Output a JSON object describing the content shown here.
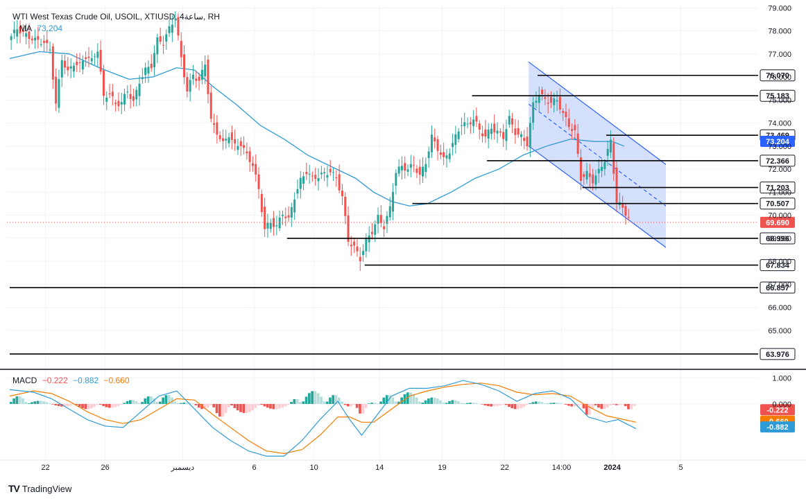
{
  "header": {
    "symbol_line": "WTI West Texas Crude Oil, USOIL, XTIUSD, 4ساعة, RH",
    "ma_label": "MA",
    "ma_value": "73.204"
  },
  "macd_legend": {
    "label": "MACD",
    "hist": "−0.222",
    "macd": "−0.882",
    "signal": "−0.660"
  },
  "brand": {
    "name": "TradingView",
    "logo": "TV"
  },
  "colors": {
    "up": "#26a69a",
    "down": "#ef5350",
    "ma": "#2e9bd6",
    "channel_fill": "#c7d6fb",
    "channel_line": "#2962ff",
    "signal": "#f57c00",
    "hist_up_strong": "#26a69a",
    "hist_up_weak": "#b2dfdb",
    "hist_down_strong": "#ef5350",
    "hist_down_weak": "#ffcdd2"
  },
  "chart_data": {
    "type": "candlestick",
    "price_axis": {
      "ticks": [
        "79.000",
        "78.000",
        "77.000",
        "76.000",
        "75.000",
        "74.000",
        "73.000",
        "72.000",
        "71.000",
        "70.000",
        "69.000",
        "68.000",
        "67.000",
        "66.000",
        "65.000"
      ],
      "ylim": [
        63.4,
        79.1
      ]
    },
    "macd_axis": {
      "ticks": [
        "1.000",
        "0.000"
      ],
      "ylim": [
        -2.1,
        1.3
      ]
    },
    "x_ticks": [
      {
        "label": "22",
        "bar": 12
      },
      {
        "label": "26",
        "bar": 32
      },
      {
        "label": "ديسمبر",
        "bar": 58
      },
      {
        "label": "6",
        "bar": 82
      },
      {
        "label": "10",
        "bar": 102
      },
      {
        "label": "14",
        "bar": 124
      },
      {
        "label": "19",
        "bar": 145
      },
      {
        "label": "22",
        "bar": 166
      },
      {
        "label": "14:00",
        "bar": 185
      },
      {
        "label": "2024",
        "bar": 202
      },
      {
        "label": "5",
        "bar": 225
      }
    ],
    "levels": [
      {
        "label": "76.070",
        "value": 76.07,
        "from_bar": 177
      },
      {
        "label": "75.183",
        "value": 75.183,
        "from_bar": 155
      },
      {
        "label": "73.469",
        "value": 73.469,
        "from_bar": 200
      },
      {
        "label": "72.366",
        "value": 72.366,
        "from_bar": 160
      },
      {
        "label": "71.203",
        "value": 71.203,
        "from_bar": 192
      },
      {
        "label": "70.507",
        "value": 70.507,
        "from_bar": 135
      },
      {
        "label": "68.996",
        "value": 68.996,
        "from_bar": 93
      },
      {
        "label": "67.834",
        "value": 67.834,
        "from_bar": 119
      },
      {
        "label": "66.857",
        "value": 66.857,
        "from_bar": 0
      },
      {
        "label": "63.976",
        "value": 63.976,
        "from_bar": 0
      }
    ],
    "price_labels": [
      {
        "label": "73.204",
        "value": 73.204,
        "kind": "ma"
      },
      {
        "label": "69.690",
        "value": 69.69,
        "kind": "last"
      }
    ],
    "last_price": 69.69,
    "macd_labels": [
      {
        "label": "-0.222",
        "value": -0.222,
        "kind": "hist"
      },
      {
        "label": "-0.660",
        "value": -0.66,
        "kind": "signal"
      },
      {
        "label": "-0.882",
        "value": -0.882,
        "kind": "macd"
      }
    ],
    "channel": {
      "upper": [
        {
          "bar": 174,
          "value": 76.65
        },
        {
          "bar": 220,
          "value": 72.2
        }
      ],
      "lower": [
        {
          "bar": 174,
          "value": 73.0
        },
        {
          "bar": 220,
          "value": 68.6
        }
      ],
      "mid": [
        {
          "bar": 174,
          "value": 74.82
        },
        {
          "bar": 220,
          "value": 70.4
        }
      ]
    },
    "price_path": [
      [
        0,
        77.6
      ],
      [
        3,
        78.1
      ],
      [
        6,
        77.8
      ],
      [
        9,
        77.6
      ],
      [
        12,
        77.5
      ],
      [
        14,
        77.2
      ],
      [
        16,
        74.8
      ],
      [
        18,
        76.8
      ],
      [
        20,
        76.2
      ],
      [
        22,
        76.6
      ],
      [
        24,
        76.5
      ],
      [
        26,
        76.9
      ],
      [
        28,
        76.7
      ],
      [
        30,
        77.2
      ],
      [
        32,
        75.1
      ],
      [
        34,
        75.3
      ],
      [
        36,
        74.8
      ],
      [
        38,
        74.9
      ],
      [
        40,
        75.4
      ],
      [
        42,
        74.9
      ],
      [
        44,
        75.8
      ],
      [
        46,
        76.3
      ],
      [
        48,
        76.5
      ],
      [
        50,
        77.6
      ],
      [
        52,
        77.5
      ],
      [
        54,
        78.1
      ],
      [
        56,
        78.6
      ],
      [
        58,
        76.8
      ],
      [
        60,
        75.4
      ],
      [
        62,
        76.1
      ],
      [
        64,
        75.8
      ],
      [
        66,
        76.6
      ],
      [
        68,
        74.1
      ],
      [
        70,
        73.6
      ],
      [
        72,
        73.1
      ],
      [
        74,
        73.5
      ],
      [
        76,
        73.0
      ],
      [
        78,
        73.1
      ],
      [
        80,
        72.6
      ],
      [
        82,
        72.2
      ],
      [
        84,
        71.1
      ],
      [
        86,
        69.4
      ],
      [
        88,
        69.7
      ],
      [
        90,
        69.5
      ],
      [
        92,
        70.1
      ],
      [
        94,
        69.8
      ],
      [
        96,
        70.8
      ],
      [
        98,
        71.5
      ],
      [
        100,
        71.9
      ],
      [
        102,
        71.6
      ],
      [
        104,
        71.7
      ],
      [
        106,
        71.8
      ],
      [
        108,
        71.9
      ],
      [
        110,
        71.6
      ],
      [
        112,
        70.8
      ],
      [
        114,
        68.9
      ],
      [
        116,
        68.6
      ],
      [
        118,
        68.1
      ],
      [
        120,
        68.9
      ],
      [
        122,
        69.3
      ],
      [
        124,
        69.9
      ],
      [
        126,
        69.5
      ],
      [
        128,
        70.3
      ],
      [
        130,
        71.9
      ],
      [
        132,
        72.1
      ],
      [
        134,
        72.0
      ],
      [
        136,
        72.2
      ],
      [
        138,
        71.7
      ],
      [
        140,
        72.3
      ],
      [
        142,
        73.4
      ],
      [
        144,
        72.9
      ],
      [
        146,
        72.4
      ],
      [
        148,
        72.8
      ],
      [
        150,
        73.4
      ],
      [
        152,
        74.0
      ],
      [
        154,
        73.9
      ],
      [
        156,
        74.2
      ],
      [
        158,
        73.7
      ],
      [
        160,
        73.4
      ],
      [
        162,
        73.8
      ],
      [
        164,
        73.6
      ],
      [
        166,
        73.4
      ],
      [
        168,
        74.2
      ],
      [
        170,
        73.6
      ],
      [
        172,
        73.4
      ],
      [
        174,
        73.1
      ],
      [
        176,
        74.8
      ],
      [
        178,
        75.3
      ],
      [
        180,
        75.0
      ],
      [
        182,
        74.9
      ],
      [
        184,
        75.0
      ],
      [
        186,
        74.4
      ],
      [
        188,
        73.9
      ],
      [
        190,
        73.6
      ],
      [
        192,
        71.6
      ],
      [
        194,
        71.8
      ],
      [
        196,
        71.5
      ],
      [
        198,
        71.9
      ],
      [
        200,
        72.4
      ],
      [
        202,
        73.2
      ],
      [
        204,
        70.6
      ],
      [
        206,
        70.3
      ],
      [
        208,
        69.9
      ]
    ],
    "ma_path": [
      [
        0,
        76.8
      ],
      [
        10,
        77.1
      ],
      [
        20,
        77.0
      ],
      [
        30,
        76.4
      ],
      [
        40,
        75.9
      ],
      [
        48,
        76.0
      ],
      [
        56,
        76.4
      ],
      [
        62,
        76.3
      ],
      [
        68,
        75.6
      ],
      [
        76,
        74.8
      ],
      [
        84,
        73.9
      ],
      [
        92,
        73.3
      ],
      [
        100,
        72.6
      ],
      [
        108,
        72.1
      ],
      [
        116,
        71.6
      ],
      [
        122,
        71.0
      ],
      [
        128,
        70.6
      ],
      [
        134,
        70.4
      ],
      [
        140,
        70.5
      ],
      [
        148,
        71.0
      ],
      [
        156,
        71.6
      ],
      [
        164,
        72.0
      ],
      [
        172,
        72.6
      ],
      [
        180,
        73.0
      ],
      [
        188,
        73.3
      ],
      [
        196,
        73.2
      ],
      [
        202,
        73.2
      ],
      [
        206,
        73.0
      ]
    ],
    "macd_path": [
      [
        0,
        0.55
      ],
      [
        8,
        0.45
      ],
      [
        14,
        0.2
      ],
      [
        20,
        -0.2
      ],
      [
        26,
        -0.6
      ],
      [
        32,
        -0.85
      ],
      [
        38,
        -0.9
      ],
      [
        44,
        -0.3
      ],
      [
        50,
        0.3
      ],
      [
        56,
        0.5
      ],
      [
        62,
        -0.2
      ],
      [
        68,
        -0.9
      ],
      [
        74,
        -1.4
      ],
      [
        80,
        -1.8
      ],
      [
        86,
        -2.0
      ],
      [
        92,
        -2.0
      ],
      [
        98,
        -1.4
      ],
      [
        104,
        -0.6
      ],
      [
        110,
        0.1
      ],
      [
        114,
        -0.6
      ],
      [
        118,
        -1.2
      ],
      [
        122,
        -0.6
      ],
      [
        128,
        0.3
      ],
      [
        134,
        0.6
      ],
      [
        140,
        0.6
      ],
      [
        146,
        0.7
      ],
      [
        152,
        0.9
      ],
      [
        158,
        0.75
      ],
      [
        164,
        0.5
      ],
      [
        170,
        0.1
      ],
      [
        176,
        0.4
      ],
      [
        182,
        0.5
      ],
      [
        188,
        0.2
      ],
      [
        194,
        -0.5
      ],
      [
        200,
        -0.7
      ],
      [
        204,
        -0.6
      ],
      [
        210,
        -0.95
      ]
    ],
    "signal_path": [
      [
        0,
        0.3
      ],
      [
        8,
        0.5
      ],
      [
        14,
        0.4
      ],
      [
        20,
        0.1
      ],
      [
        26,
        -0.3
      ],
      [
        32,
        -0.6
      ],
      [
        38,
        -0.75
      ],
      [
        44,
        -0.6
      ],
      [
        50,
        -0.2
      ],
      [
        56,
        0.2
      ],
      [
        62,
        0.15
      ],
      [
        68,
        -0.4
      ],
      [
        74,
        -0.9
      ],
      [
        80,
        -1.4
      ],
      [
        86,
        -1.8
      ],
      [
        92,
        -1.9
      ],
      [
        98,
        -1.75
      ],
      [
        104,
        -1.2
      ],
      [
        110,
        -0.5
      ],
      [
        114,
        -0.5
      ],
      [
        118,
        -0.7
      ],
      [
        122,
        -0.7
      ],
      [
        128,
        -0.2
      ],
      [
        134,
        0.3
      ],
      [
        140,
        0.5
      ],
      [
        146,
        0.65
      ],
      [
        152,
        0.75
      ],
      [
        158,
        0.8
      ],
      [
        164,
        0.7
      ],
      [
        170,
        0.45
      ],
      [
        176,
        0.35
      ],
      [
        182,
        0.4
      ],
      [
        188,
        0.3
      ],
      [
        194,
        -0.1
      ],
      [
        200,
        -0.45
      ],
      [
        204,
        -0.55
      ],
      [
        210,
        -0.7
      ]
    ],
    "hist_segments": [
      [
        0,
        6,
        0.3
      ],
      [
        6,
        14,
        0.12
      ],
      [
        14,
        22,
        -0.1
      ],
      [
        22,
        30,
        -0.2
      ],
      [
        30,
        38,
        -0.15
      ],
      [
        38,
        44,
        0.15
      ],
      [
        44,
        50,
        0.3
      ],
      [
        50,
        56,
        0.35
      ],
      [
        56,
        62,
        0.05
      ],
      [
        62,
        68,
        -0.2
      ],
      [
        68,
        74,
        -0.5
      ],
      [
        74,
        84,
        -0.35
      ],
      [
        84,
        94,
        -0.2
      ],
      [
        94,
        98,
        0.2
      ],
      [
        98,
        106,
        0.5
      ],
      [
        106,
        112,
        0.35
      ],
      [
        112,
        116,
        -0.1
      ],
      [
        116,
        120,
        -0.4
      ],
      [
        120,
        124,
        0.05
      ],
      [
        124,
        130,
        0.35
      ],
      [
        130,
        138,
        0.45
      ],
      [
        138,
        146,
        0.25
      ],
      [
        146,
        152,
        0.15
      ],
      [
        152,
        158,
        0.05
      ],
      [
        158,
        166,
        -0.1
      ],
      [
        166,
        174,
        -0.2
      ],
      [
        174,
        180,
        0.1
      ],
      [
        180,
        186,
        0.05
      ],
      [
        186,
        192,
        -0.1
      ],
      [
        192,
        196,
        -0.45
      ],
      [
        196,
        202,
        -0.2
      ],
      [
        202,
        206,
        -0.05
      ],
      [
        206,
        210,
        -0.22
      ]
    ]
  }
}
